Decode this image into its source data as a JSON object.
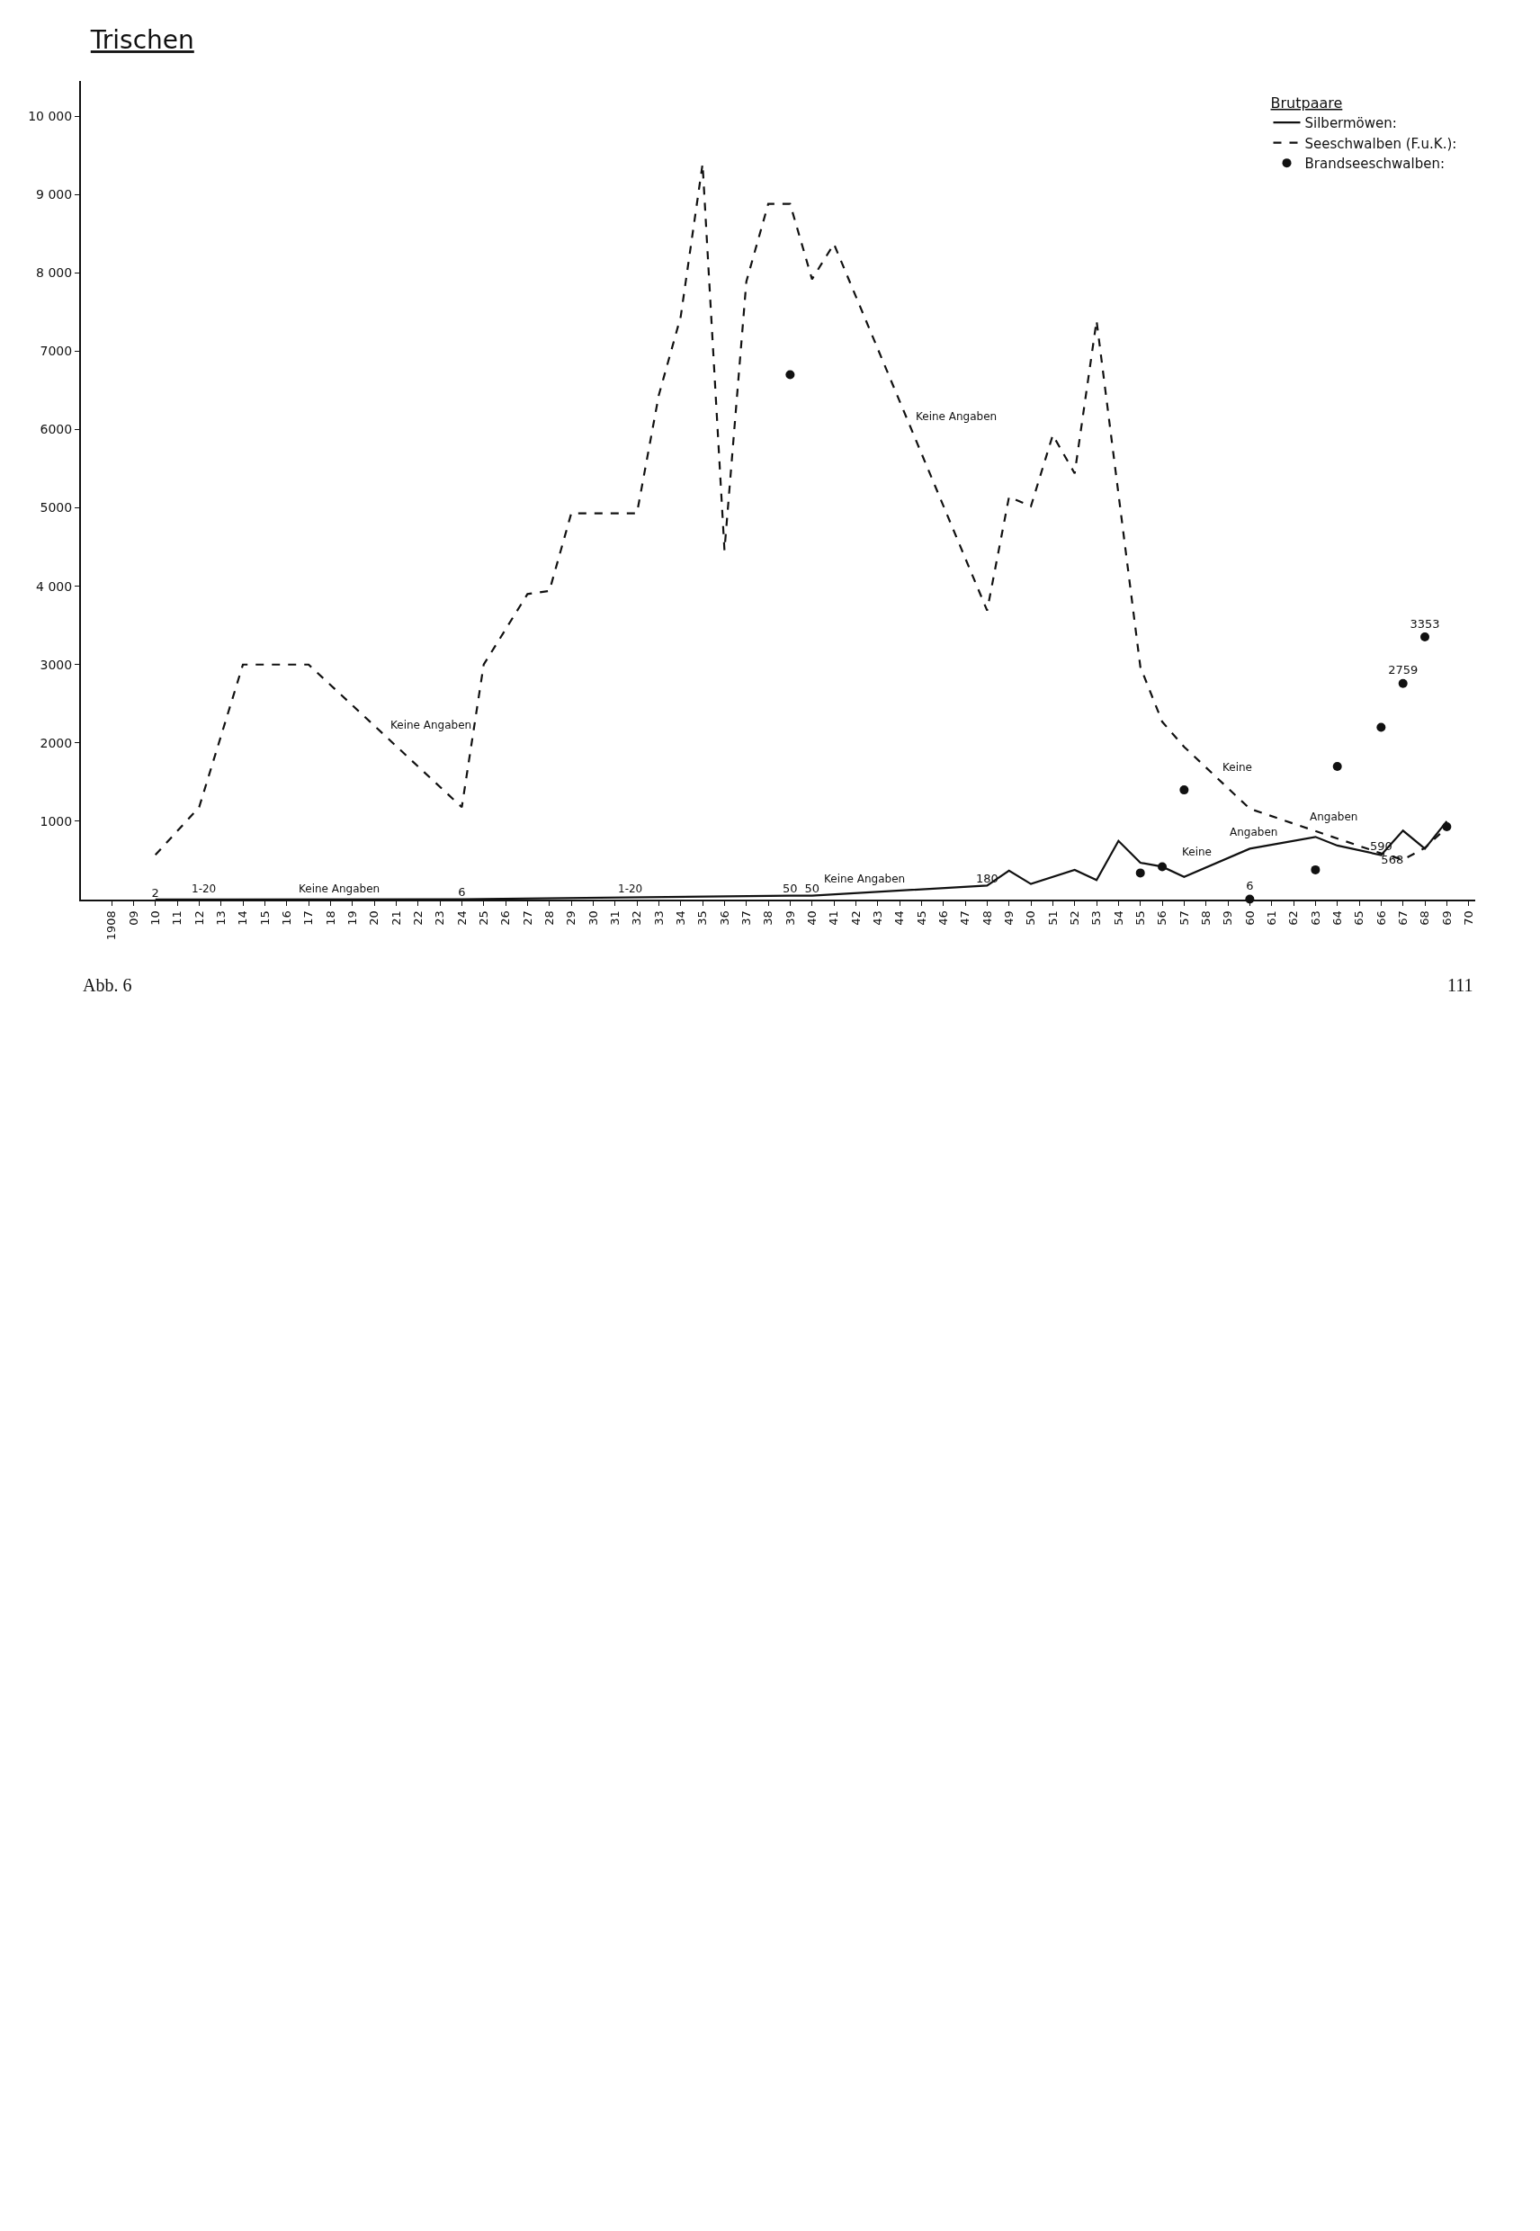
{
  "chart_data": {
    "type": "line",
    "title": "Trischen",
    "legend_title": "Brutpaare",
    "legend": "top right",
    "xlim": [
      1906.6,
      1970.3
    ],
    "ylim": [
      0,
      10450
    ],
    "xticks": [
      {
        "value": 1908,
        "label": "1908"
      },
      {
        "value": 1909,
        "label": "09"
      },
      {
        "value": 1910,
        "label": "10"
      },
      {
        "value": 1911,
        "label": "11"
      },
      {
        "value": 1912,
        "label": "12"
      },
      {
        "value": 1913,
        "label": "13"
      },
      {
        "value": 1914,
        "label": "14"
      },
      {
        "value": 1915,
        "label": "15"
      },
      {
        "value": 1916,
        "label": "16"
      },
      {
        "value": 1917,
        "label": "17"
      },
      {
        "value": 1918,
        "label": "18"
      },
      {
        "value": 1919,
        "label": "19"
      },
      {
        "value": 1920,
        "label": "20"
      },
      {
        "value": 1921,
        "label": "21"
      },
      {
        "value": 1922,
        "label": "22"
      },
      {
        "value": 1923,
        "label": "23"
      },
      {
        "value": 1924,
        "label": "24"
      },
      {
        "value": 1925,
        "label": "25"
      },
      {
        "value": 1926,
        "label": "26"
      },
      {
        "value": 1927,
        "label": "27"
      },
      {
        "value": 1928,
        "label": "28"
      },
      {
        "value": 1929,
        "label": "29"
      },
      {
        "value": 1930,
        "label": "30"
      },
      {
        "value": 1931,
        "label": "31"
      },
      {
        "value": 1932,
        "label": "32"
      },
      {
        "value": 1933,
        "label": "33"
      },
      {
        "value": 1934,
        "label": "34"
      },
      {
        "value": 1935,
        "label": "35"
      },
      {
        "value": 1936,
        "label": "36"
      },
      {
        "value": 1937,
        "label": "37"
      },
      {
        "value": 1938,
        "label": "38"
      },
      {
        "value": 1939,
        "label": "39"
      },
      {
        "value": 1940,
        "label": "40"
      },
      {
        "value": 1941,
        "label": "41"
      },
      {
        "value": 1942,
        "label": "42"
      },
      {
        "value": 1943,
        "label": "43"
      },
      {
        "value": 1944,
        "label": "44"
      },
      {
        "value": 1945,
        "label": "45"
      },
      {
        "value": 1946,
        "label": "46"
      },
      {
        "value": 1947,
        "label": "47"
      },
      {
        "value": 1948,
        "label": "48"
      },
      {
        "value": 1949,
        "label": "49"
      },
      {
        "value": 1950,
        "label": "50"
      },
      {
        "value": 1951,
        "label": "51"
      },
      {
        "value": 1952,
        "label": "52"
      },
      {
        "value": 1953,
        "label": "53"
      },
      {
        "value": 1954,
        "label": "54"
      },
      {
        "value": 1955,
        "label": "55"
      },
      {
        "value": 1956,
        "label": "56"
      },
      {
        "value": 1957,
        "label": "57"
      },
      {
        "value": 1958,
        "label": "58"
      },
      {
        "value": 1959,
        "label": "59"
      },
      {
        "value": 1960,
        "label": "60"
      },
      {
        "value": 1961,
        "label": "61"
      },
      {
        "value": 1962,
        "label": "62"
      },
      {
        "value": 1963,
        "label": "63"
      },
      {
        "value": 1964,
        "label": "64"
      },
      {
        "value": 1965,
        "label": "65"
      },
      {
        "value": 1966,
        "label": "66"
      },
      {
        "value": 1967,
        "label": "67"
      },
      {
        "value": 1968,
        "label": "68"
      },
      {
        "value": 1969,
        "label": "69"
      },
      {
        "value": 1970,
        "label": "70"
      }
    ],
    "yticks": [
      {
        "value": 1000,
        "label": "1000"
      },
      {
        "value": 2000,
        "label": "2000"
      },
      {
        "value": 3000,
        "label": "3000"
      },
      {
        "value": 4000,
        "label": "4 000"
      },
      {
        "value": 5000,
        "label": "5000"
      },
      {
        "value": 6000,
        "label": "6000"
      },
      {
        "value": 7000,
        "label": "7000"
      },
      {
        "value": 8000,
        "label": "8 000"
      },
      {
        "value": 9000,
        "label": "9 000"
      },
      {
        "value": 10000,
        "label": "10 000"
      }
    ],
    "series": [
      {
        "name": "Silbermöwen:",
        "color": "#111111",
        "line_style": "solid",
        "x": [
          1910,
          1924,
          1939,
          1940,
          1948,
          1949,
          1950,
          1952,
          1953,
          1954,
          1955,
          1956,
          1957,
          1960,
          1963,
          1964,
          1966,
          1967,
          1968,
          1969
        ],
        "values": [
          2,
          6,
          50,
          50,
          180,
          370,
          200,
          380,
          250,
          750,
          470,
          420,
          290,
          650,
          800,
          690,
          568,
          880,
          650,
          1000
        ],
        "value_labels": [
          "2",
          "6",
          "50",
          "50",
          "180",
          null,
          null,
          null,
          null,
          null,
          null,
          null,
          null,
          null,
          null,
          null,
          "568",
          null,
          null,
          null
        ]
      },
      {
        "name": "Seeschwalben (F.u.K.):",
        "color": "#111111",
        "line_style": "dashed",
        "x": [
          1910,
          1912,
          1914,
          1917,
          1924,
          1925,
          1927,
          1928,
          1929,
          1932,
          1933,
          1934,
          1935,
          1936,
          1937,
          1938,
          1939,
          1940,
          1941,
          1948,
          1949,
          1950,
          1951,
          1952,
          1953,
          1955,
          1956,
          1957,
          1960,
          1966,
          1967,
          1968,
          1969
        ],
        "values": [
          570,
          1180,
          3000,
          3000,
          1180,
          3000,
          3900,
          3940,
          4930,
          4930,
          6440,
          7440,
          9390,
          4460,
          7890,
          8880,
          8880,
          7920,
          8370,
          3690,
          5140,
          5020,
          5930,
          5440,
          7390,
          2970,
          2270,
          1950,
          1160,
          590,
          510,
          660,
          920
        ],
        "value_labels": [
          null,
          null,
          null,
          null,
          null,
          null,
          null,
          null,
          null,
          null,
          null,
          null,
          null,
          null,
          null,
          null,
          null,
          null,
          null,
          null,
          null,
          null,
          null,
          null,
          null,
          null,
          null,
          null,
          null,
          "590",
          null,
          null,
          null
        ]
      },
      {
        "name": "Brandseeschwalben:",
        "color": "#111111",
        "type": "scatter",
        "marker": "circle",
        "x": [
          1939,
          1955,
          1956,
          1957,
          1960,
          1963,
          1964,
          1966,
          1967,
          1968,
          1969
        ],
        "values": [
          6700,
          340,
          420,
          1400,
          6,
          380,
          1700,
          2200,
          2759,
          3353,
          930
        ],
        "value_labels": [
          null,
          null,
          null,
          null,
          "6",
          null,
          null,
          null,
          "2759",
          "3353",
          null
        ]
      }
    ],
    "annotations": [
      {
        "text": "Keine Angaben",
        "x": 1920.5,
        "y": 2090
      },
      {
        "text": "Keine Angaben",
        "x": 1944.5,
        "y": 6030
      },
      {
        "text": "Keine",
        "x": 1958.5,
        "y": 1555
      },
      {
        "text": "Angaben",
        "x": 1962.5,
        "y": 920
      },
      {
        "text": "1-20",
        "x": 1913,
        "y": 0
      },
      {
        "text": "Keine Angaben",
        "x": 1920.5,
        "y": 0
      },
      {
        "text": "1-20",
        "x": 1932.5,
        "y": 0
      },
      {
        "text": "Keine Angaben",
        "x": 1944.5,
        "y": 123
      },
      {
        "text": "Keine",
        "x": 1958.5,
        "y": 470
      },
      {
        "text": "Angaben",
        "x": 1961.5,
        "y": 725
      },
      "Abb. 6",
      "111"
    ]
  }
}
